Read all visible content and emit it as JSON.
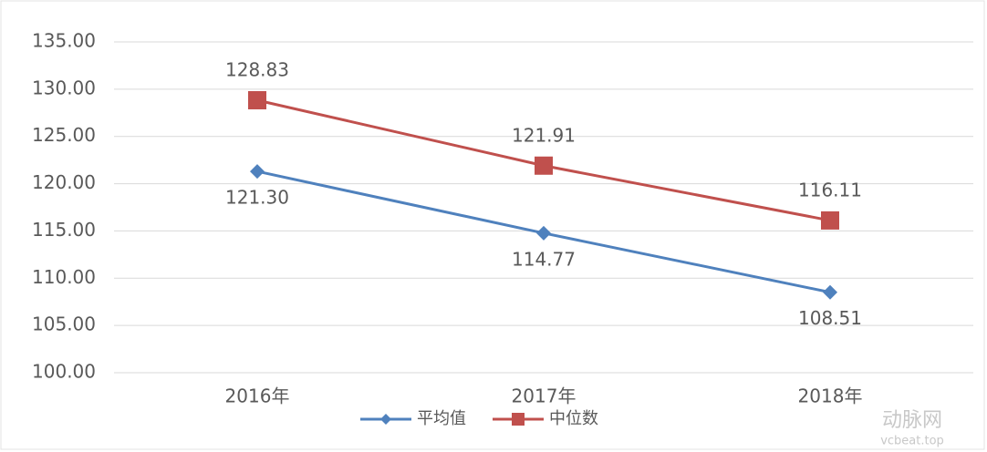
{
  "chart_data": {
    "type": "line",
    "categories": [
      "2016年",
      "2017年",
      "2018年"
    ],
    "series": [
      {
        "name": "平均值",
        "color": "#4f81bd",
        "marker": "diamond",
        "values": [
          121.3,
          114.77,
          108.51
        ],
        "value_labels": [
          "121.30",
          "114.77",
          "108.51"
        ]
      },
      {
        "name": "中位数",
        "color": "#c0504d",
        "marker": "square",
        "values": [
          128.83,
          121.91,
          116.11
        ],
        "value_labels": [
          "128.83",
          "121.91",
          "116.11"
        ]
      }
    ],
    "ylim": [
      100,
      135
    ],
    "yticks": [
      {
        "value": 100,
        "label": "100.00"
      },
      {
        "value": 105,
        "label": "105.00"
      },
      {
        "value": 110,
        "label": "110.00"
      },
      {
        "value": 115,
        "label": "115.00"
      },
      {
        "value": 120,
        "label": "120.00"
      },
      {
        "value": 125,
        "label": "125.00"
      },
      {
        "value": 130,
        "label": "130.00"
      },
      {
        "value": 135,
        "label": "135.00"
      }
    ],
    "grid": true,
    "legend": "bottom",
    "watermark": [
      "动脉网",
      "vcbeat.top"
    ]
  }
}
